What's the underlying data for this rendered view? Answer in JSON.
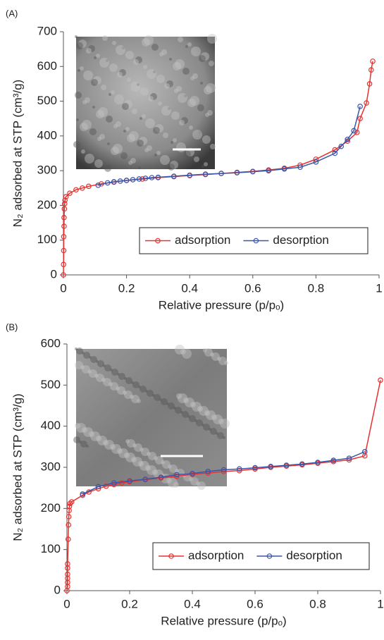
{
  "chart_data": [
    {
      "type": "line",
      "panel_label": "(A)",
      "xlabel": "Relative pressure (p/pₒ)",
      "ylabel": "N₂ adsorbed at STP (cm³/g)",
      "xlim": [
        0,
        1
      ],
      "ylim": [
        0,
        700
      ],
      "xticks": [
        0,
        0.2,
        0.4,
        0.6,
        0.8,
        1
      ],
      "yticks": [
        0,
        100,
        200,
        300,
        400,
        500,
        600,
        700
      ],
      "grid": false,
      "legend_position": "lower right",
      "series": [
        {
          "name": "adsorption",
          "color": "#e8312f",
          "x": [
            0,
            0.0005,
            0.001,
            0.001,
            0.002,
            0.002,
            0.003,
            0.004,
            0.005,
            0.008,
            0.02,
            0.04,
            0.06,
            0.08,
            0.12,
            0.16,
            0.2,
            0.25,
            0.3,
            0.35,
            0.4,
            0.45,
            0.5,
            0.55,
            0.6,
            0.65,
            0.7,
            0.75,
            0.8,
            0.86,
            0.9,
            0.93,
            0.94,
            0.96,
            0.97,
            0.975,
            0.98
          ],
          "values": [
            0,
            30,
            70,
            110,
            140,
            165,
            190,
            205,
            215,
            225,
            235,
            245,
            250,
            255,
            262,
            267,
            272,
            276,
            280,
            283,
            286,
            289,
            292,
            295,
            298,
            302,
            307,
            316,
            333,
            360,
            385,
            410,
            450,
            495,
            550,
            590,
            615
          ]
        },
        {
          "name": "desorption",
          "color": "#3a56a8",
          "x": [
            0.94,
            0.92,
            0.9,
            0.88,
            0.86,
            0.8,
            0.75,
            0.7,
            0.65,
            0.6,
            0.55,
            0.5,
            0.45,
            0.4,
            0.35,
            0.3,
            0.28,
            0.26,
            0.24,
            0.22,
            0.2,
            0.18,
            0.16,
            0.14,
            0.11
          ],
          "values": [
            485,
            415,
            390,
            370,
            350,
            325,
            310,
            305,
            300,
            297,
            294,
            292,
            290,
            287,
            284,
            281,
            280,
            278,
            276,
            274,
            272,
            270,
            268,
            265,
            258
          ]
        }
      ]
    },
    {
      "type": "line",
      "panel_label": "(B)",
      "xlabel": "Relative pressure (p/pₒ)",
      "ylabel": "N₂ adsorbed at STP (cm³/g)",
      "xlim": [
        0,
        1
      ],
      "ylim": [
        0,
        600
      ],
      "xticks": [
        0,
        0.2,
        0.4,
        0.6,
        0.8,
        1
      ],
      "yticks": [
        0,
        100,
        200,
        300,
        400,
        500,
        600
      ],
      "grid": false,
      "legend_position": "lower right",
      "series": [
        {
          "name": "adsorption",
          "color": "#e8312f",
          "x": [
            0,
            0.002,
            0.002,
            0.002,
            0.002,
            0.002,
            0.002,
            0.004,
            0.005,
            0.006,
            0.007,
            0.008,
            0.01,
            0.015,
            0.05,
            0.07,
            0.1,
            0.125,
            0.15,
            0.175,
            0.2,
            0.25,
            0.3,
            0.35,
            0.4,
            0.45,
            0.5,
            0.55,
            0.6,
            0.65,
            0.7,
            0.75,
            0.8,
            0.85,
            0.9,
            0.95,
            1
          ],
          "values": [
            0,
            10,
            20,
            30,
            40,
            55,
            65,
            125,
            160,
            180,
            195,
            205,
            212,
            216,
            232,
            240,
            248,
            254,
            258,
            262,
            265,
            270,
            274,
            278,
            283,
            286,
            290,
            292,
            296,
            300,
            303,
            306,
            310,
            314,
            318,
            328,
            512
          ]
        },
        {
          "name": "desorption",
          "color": "#3a56a8",
          "x": [
            0.95,
            0.9,
            0.85,
            0.8,
            0.75,
            0.7,
            0.65,
            0.6,
            0.55,
            0.5,
            0.45,
            0.4,
            0.35,
            0.3,
            0.25,
            0.2,
            0.15,
            0.1,
            0.05
          ],
          "values": [
            338,
            322,
            317,
            312,
            308,
            305,
            302,
            299,
            296,
            294,
            290,
            285,
            282,
            276,
            271,
            267,
            262,
            253,
            235
          ]
        }
      ]
    }
  ]
}
